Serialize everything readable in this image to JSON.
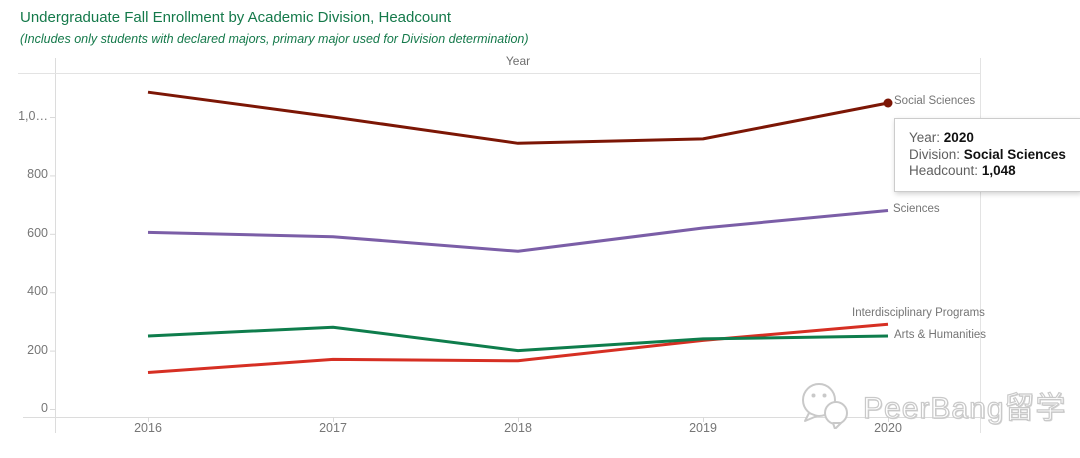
{
  "header": {
    "title": "Undergraduate Fall Enrollment by Academic Division, Headcount",
    "subtitle": "(Includes only students with declared majors, primary major used for Division determination)",
    "title_color": "#14794a"
  },
  "chart_data": {
    "type": "line",
    "title": "Undergraduate Fall Enrollment by Academic Division, Headcount",
    "xlabel": "Year",
    "ylabel": "",
    "grid": false,
    "legend_position": "labels-at-line-end-right",
    "x": [
      2016,
      2017,
      2018,
      2019,
      2020
    ],
    "x_tick_labels": [
      "2016",
      "2017",
      "2018",
      "2019",
      "2020"
    ],
    "y_ticks": [
      {
        "value": 0,
        "label": "0"
      },
      {
        "value": 200,
        "label": "200"
      },
      {
        "value": 400,
        "label": "400"
      },
      {
        "value": 600,
        "label": "600"
      },
      {
        "value": 800,
        "label": "800"
      },
      {
        "value": 1000,
        "label": "1,0…"
      }
    ],
    "ylim": [
      -27,
      1150
    ],
    "series": [
      {
        "name": "Social Sciences",
        "color": "#7c1605",
        "values": [
          1085,
          1000,
          910,
          925,
          1048
        ],
        "marker_on_last": true
      },
      {
        "name": "Sciences",
        "color": "#7b5ea7",
        "values": [
          605,
          590,
          540,
          620,
          680
        ],
        "marker_on_last": false
      },
      {
        "name": "Interdisciplinary Programs",
        "color": "#d62f23",
        "values": [
          125,
          170,
          165,
          235,
          290
        ],
        "marker_on_last": false
      },
      {
        "name": "Arts & Humanities",
        "color": "#0e7d4c",
        "values": [
          250,
          280,
          200,
          240,
          250
        ],
        "marker_on_last": false
      }
    ]
  },
  "tooltip": {
    "rows": [
      {
        "label": "Year:",
        "value": "2020"
      },
      {
        "label": "Division:",
        "value": "Social Sciences"
      },
      {
        "label": "Headcount:",
        "value": "1,048"
      }
    ]
  },
  "watermark": {
    "text": "PeerBang留学",
    "icon": "wechat-icon"
  }
}
